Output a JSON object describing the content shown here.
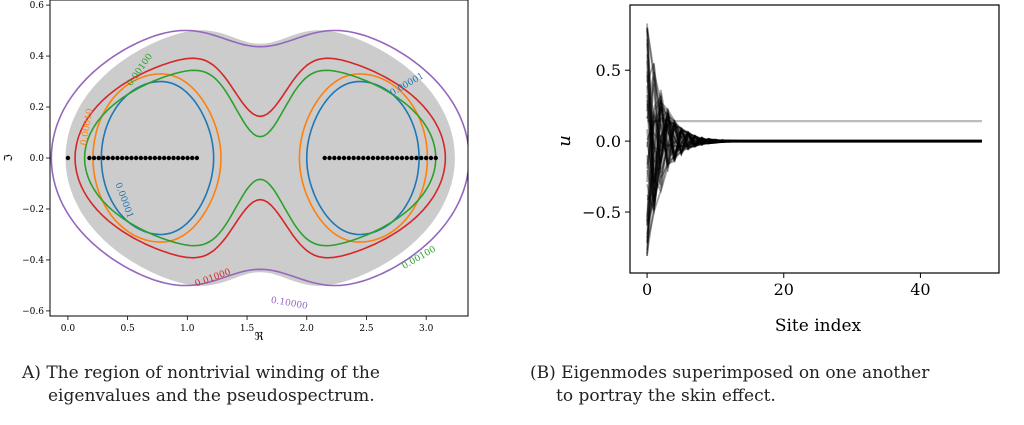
{
  "chart_data": [
    {
      "type": "contour",
      "xlabel": "ℜ",
      "ylabel": "ℑ",
      "xlim": [
        -0.15,
        3.35
      ],
      "ylim": [
        -0.62,
        0.62
      ],
      "xticks": [
        "0.0",
        "0.5",
        "1.0",
        "1.5",
        "2.0",
        "2.5",
        "3.0"
      ],
      "yticks": [
        "−0.6",
        "−0.4",
        "−0.2",
        "0.0",
        "0.2",
        "0.4",
        "0.6"
      ],
      "region_color": "#cccccc",
      "levels": [
        {
          "label": "0.00001",
          "color": "#1f77b4"
        },
        {
          "label": "0.00010",
          "color": "#ff7f0e"
        },
        {
          "label": "0.00100",
          "color": "#2ca02c"
        },
        {
          "label": "0.01000",
          "color": "#d62728"
        },
        {
          "label": "0.10000",
          "color": "#9467bd"
        }
      ],
      "eigenvalue_clusters": [
        {
          "x_from": 0.18,
          "x_to": 1.08,
          "count": 24
        },
        {
          "x_from": 2.15,
          "x_to": 3.08,
          "count": 24
        }
      ],
      "eigenvalue_extra": [
        0.0
      ]
    },
    {
      "type": "line",
      "xlabel": "Site index",
      "ylabel": "u",
      "xlim": [
        -2.5,
        51.5
      ],
      "ylim": [
        -0.93,
        0.96
      ],
      "xticks": [
        "0",
        "20",
        "40"
      ],
      "yticks": [
        "−0.5",
        "0.0",
        "0.5"
      ],
      "n_sites": 50,
      "flat_mode_value": 0.141,
      "initial_amplitude": 0.88,
      "decay_length": 2.3
    }
  ],
  "captions": {
    "a_tag": "A)",
    "a_line1": "The region of nontrivial winding of the",
    "a_line2": "eigenvalues and the pseudospectrum.",
    "b_tag": "(B)",
    "b_line1": "Eigenmodes superimposed on one another",
    "b_line2": "to portray the skin effect."
  }
}
